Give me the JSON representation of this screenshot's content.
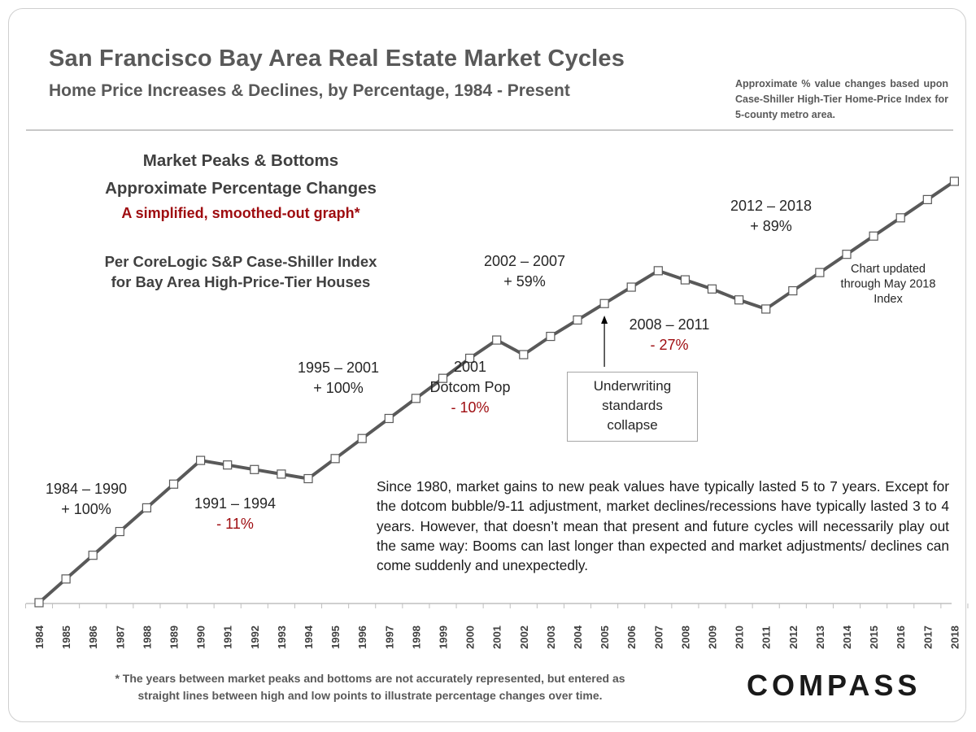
{
  "header": {
    "title": "San Francisco Bay Area Real Estate Market Cycles",
    "subtitle": "Home Price Increases & Declines, by Percentage, 1984 - Present",
    "source_note": "Approximate % value changes based upon Case-Shiller High-Tier Home-Price Index for 5-county metro area."
  },
  "panel": {
    "title_line1": "Market Peaks & Bottoms",
    "title_line2": "Approximate Percentage Changes",
    "note_red": "A simplified, smoothed-out graph*",
    "source_line1": "Per CoreLogic S&P Case-Shiller Index",
    "source_line2": "for Bay Area High-Price-Tier Houses"
  },
  "callout": {
    "line1": "Underwriting",
    "line2": "standards",
    "line3": "collapse"
  },
  "body_text": "Since 1980, market gains to new peak values have typically lasted 5 to 7 years. Except for the dotcom bubble/9-11 adjustment, market declines/recessions have typically lasted 3 to 4 years. However, that doesn’t mean that present and future cycles will necessarily play out the same way: Booms can last longer than expected and market adjustments/ declines can come suddenly and unexpectedly.",
  "footnote": {
    "line1": "* The years between market peaks and bottoms are not accurately represented, but entered as",
    "line2": "straight lines between high and low points to illustrate percentage changes over time."
  },
  "brand": "COMPASS",
  "colors": {
    "line": "#595959",
    "decline_text": "#9e0b0f",
    "text": "#262626",
    "divider": "#c8c8c8"
  },
  "chart_data": {
    "type": "line",
    "title": "",
    "xlabel": "",
    "ylabel": "",
    "grid": false,
    "x": [
      "1984",
      "1985",
      "1986",
      "1987",
      "1988",
      "1989",
      "1990",
      "1991",
      "1992",
      "1993",
      "1994",
      "1995",
      "1996",
      "1997",
      "1998",
      "1999",
      "2000",
      "2001",
      "2002",
      "2003",
      "2004",
      "2005",
      "2006",
      "2007",
      "2008",
      "2009",
      "2010",
      "2011",
      "2012",
      "2013",
      "2014",
      "2015",
      "2016",
      "2017",
      "2018"
    ],
    "series": [
      {
        "values": [
          100,
          113,
          126,
          139,
          152,
          165,
          178,
          175.5,
          173,
          170.5,
          168,
          179,
          190,
          201,
          212,
          223,
          234,
          244,
          236,
          246,
          255,
          264,
          273,
          282,
          277,
          272,
          266,
          261,
          271,
          281,
          291,
          301,
          311,
          321,
          331
        ]
      }
    ],
    "ylim": [
      100,
      335
    ],
    "marker": "open-square",
    "annotations": [
      {
        "label": "1984 – 1990",
        "change": "+ 100%",
        "kind": "gain"
      },
      {
        "label": "1991 – 1994",
        "change": "- 11%",
        "kind": "decline"
      },
      {
        "label": "1995 – 2001",
        "change": "+ 100%",
        "kind": "gain"
      },
      {
        "label": "2001",
        "sublabel": "Dotcom Pop",
        "change": "- 10%",
        "kind": "decline"
      },
      {
        "label": "2002 – 2007",
        "change": "+ 59%",
        "kind": "gain"
      },
      {
        "label": "2008 – 2011",
        "change": "- 27%",
        "kind": "decline"
      },
      {
        "label": "2012 – 2018",
        "change": "+ 89%",
        "kind": "gain"
      }
    ],
    "update_note": [
      "Chart updated",
      "through May 2018",
      "Index"
    ]
  }
}
